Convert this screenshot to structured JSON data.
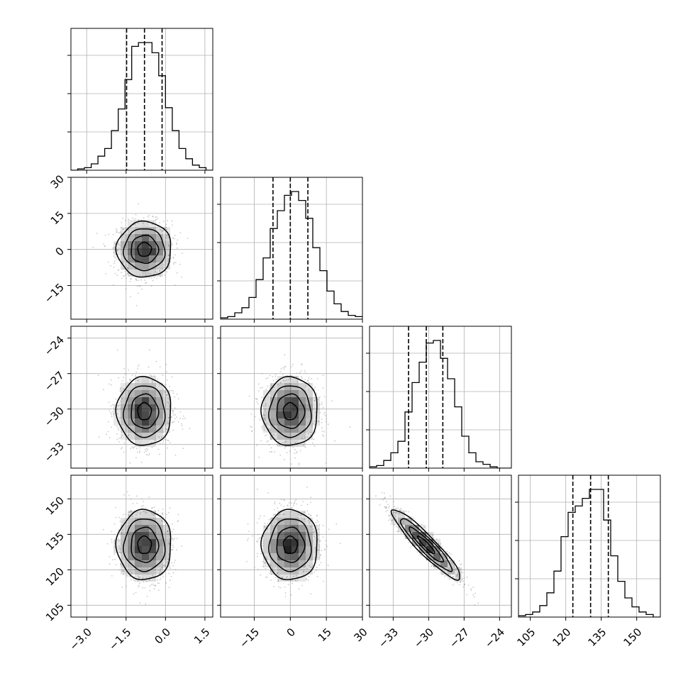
{
  "chart_data": {
    "type": "corner",
    "title": "",
    "parameters": [
      {
        "range": [
          -3.6,
          1.8
        ],
        "ticks": [
          {
            "v": -3.0,
            "label": "−3.0"
          },
          {
            "v": -1.5,
            "label": "−1.5"
          },
          {
            "v": 0.0,
            "label": "0.0"
          },
          {
            "v": 1.5,
            "label": "1.5"
          }
        ],
        "quantiles": [
          -1.48,
          -0.8,
          -0.13
        ],
        "hist_bins": [
          0,
          1,
          2,
          5,
          11,
          17,
          31,
          48,
          71,
          97,
          100,
          100,
          92,
          74,
          49,
          31,
          17,
          9,
          4,
          2,
          0
        ]
      },
      {
        "range": [
          -29.0,
          30.0
        ],
        "ticks": [
          {
            "v": -15,
            "label": "−15"
          },
          {
            "v": 0,
            "label": "0"
          },
          {
            "v": 15,
            "label": "15"
          },
          {
            "v": 30,
            "label": "30"
          }
        ],
        "quantiles": [
          -7.2,
          0.0,
          7.3
        ],
        "hist_bins": [
          1,
          2,
          5,
          9,
          17,
          31,
          48,
          71,
          85,
          97,
          100,
          93,
          79,
          56,
          38,
          22,
          12,
          6,
          3,
          2
        ]
      },
      {
        "range": [
          -35.0,
          -23.0
        ],
        "ticks": [
          {
            "v": -33,
            "label": "−33"
          },
          {
            "v": -30,
            "label": "−30"
          },
          {
            "v": -27,
            "label": "−27"
          },
          {
            "v": -24,
            "label": "−24"
          }
        ],
        "quantiles": [
          -31.7,
          -30.2,
          -28.8
        ],
        "hist_bins": [
          1,
          2,
          6,
          12,
          21,
          44,
          67,
          83,
          98,
          100,
          86,
          70,
          48,
          25,
          12,
          5,
          3,
          1,
          0,
          0
        ]
      },
      {
        "range": [
          100.0,
          160.0
        ],
        "ticks": [
          {
            "v": 105,
            "label": "105"
          },
          {
            "v": 120,
            "label": "120"
          },
          {
            "v": 135,
            "label": "135"
          },
          {
            "v": 150,
            "label": "150"
          }
        ],
        "quantiles": [
          123.0,
          130.5,
          138.0
        ],
        "hist_bins": [
          1,
          2,
          4,
          9,
          19,
          36,
          63,
          82,
          87,
          93,
          100,
          100,
          76,
          48,
          28,
          15,
          8,
          4,
          2,
          0
        ]
      }
    ],
    "y_axis_ticks": [
      [],
      [
        {
          "v": 30,
          "label": "30"
        },
        {
          "v": 15,
          "label": "15"
        },
        {
          "v": 0,
          "label": "0"
        },
        {
          "v": -15,
          "label": "−15"
        }
      ],
      [
        {
          "v": -24,
          "label": "−24"
        },
        {
          "v": -27,
          "label": "−27"
        },
        {
          "v": -30,
          "label": "−30"
        },
        {
          "v": -33,
          "label": "−33"
        }
      ],
      [
        {
          "v": 150,
          "label": "150"
        },
        {
          "v": 135,
          "label": "135"
        },
        {
          "v": 120,
          "label": "120"
        },
        {
          "v": 105,
          "label": "105"
        }
      ]
    ],
    "pairs": [
      {
        "row": 1,
        "col": 0,
        "center": [
          -0.8,
          0.0
        ],
        "sd": [
          0.52,
          5.8
        ],
        "corr": 0.0
      },
      {
        "row": 2,
        "col": 0,
        "center": [
          -0.8,
          -30.2
        ],
        "sd": [
          0.52,
          1.45
        ],
        "corr": 0.0
      },
      {
        "row": 2,
        "col": 1,
        "center": [
          0.0,
          -30.2
        ],
        "sd": [
          5.8,
          1.45
        ],
        "corr": 0.0
      },
      {
        "row": 3,
        "col": 0,
        "center": [
          -0.8,
          130.5
        ],
        "sd": [
          0.52,
          7.4
        ],
        "corr": 0.0
      },
      {
        "row": 3,
        "col": 1,
        "center": [
          0.0,
          130.5
        ],
        "sd": [
          5.8,
          7.4
        ],
        "corr": 0.0
      },
      {
        "row": 3,
        "col": 2,
        "center": [
          -30.2,
          130.5
        ],
        "sd": [
          1.45,
          7.4
        ],
        "corr": -0.93
      }
    ],
    "contour_levels_sigma": [
      0.5,
      1.0,
      1.5,
      2.0
    ],
    "grid": true,
    "colors": {
      "line": "#000000",
      "grid": "#b0b0b0",
      "points": "#9e9e9e",
      "density": "#000000"
    }
  }
}
